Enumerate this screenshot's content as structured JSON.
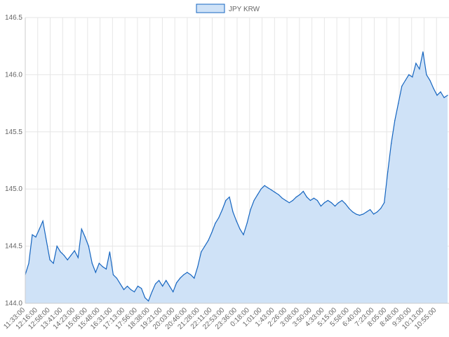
{
  "chart_data": {
    "type": "area",
    "title": "",
    "xlabel": "",
    "ylabel": "",
    "legend": {
      "placement": "top-center",
      "entries": [
        "JPY KRW"
      ]
    },
    "grid": true,
    "ylim": [
      144.0,
      146.5
    ],
    "y_ticks": [
      "144.0",
      "144.5",
      "145.0",
      "145.5",
      "146.0",
      "146.5"
    ],
    "x_ticks": [
      "11:33:00",
      "12:16:00",
      "12:58:00",
      "13:41:00",
      "14:23:00",
      "15:06:00",
      "15:48:00",
      "16:31:00",
      "17:13:00",
      "17:56:00",
      "18:38:00",
      "19:21:00",
      "20:03:00",
      "20:46:00",
      "21:28:00",
      "22:11:00",
      "22:53:00",
      "23:36:00",
      "0:18:00",
      "1:01:00",
      "1:43:00",
      "2:26:00",
      "3:08:00",
      "3:50:00",
      "4:33:00",
      "5:15:00",
      "5:58:00",
      "6:40:00",
      "7:23:00",
      "8:05:00",
      "8:48:00",
      "9:30:00",
      "10:13:00",
      "10:55:00"
    ],
    "series": [
      {
        "name": "JPY KRW",
        "color": "#1565c0",
        "fill": "#cfe2f7",
        "values": [
          144.25,
          144.35,
          144.6,
          144.58,
          144.65,
          144.72,
          144.55,
          144.38,
          144.35,
          144.5,
          144.45,
          144.42,
          144.38,
          144.42,
          144.46,
          144.4,
          144.65,
          144.58,
          144.5,
          144.35,
          144.27,
          144.35,
          144.32,
          144.3,
          144.45,
          144.25,
          144.22,
          144.17,
          144.12,
          144.15,
          144.12,
          144.1,
          144.15,
          144.13,
          144.05,
          144.02,
          144.1,
          144.17,
          144.2,
          144.15,
          144.2,
          144.15,
          144.1,
          144.18,
          144.22,
          144.25,
          144.27,
          144.25,
          144.22,
          144.32,
          144.45,
          144.5,
          144.55,
          144.62,
          144.7,
          144.75,
          144.82,
          144.9,
          144.93,
          144.8,
          144.72,
          144.65,
          144.6,
          144.7,
          144.82,
          144.9,
          144.95,
          145.0,
          145.03,
          145.01,
          144.99,
          144.97,
          144.95,
          144.92,
          144.9,
          144.88,
          144.9,
          144.93,
          144.95,
          144.98,
          144.93,
          144.9,
          144.92,
          144.9,
          144.85,
          144.88,
          144.9,
          144.88,
          144.85,
          144.88,
          144.9,
          144.87,
          144.83,
          144.8,
          144.78,
          144.77,
          144.78,
          144.8,
          144.82,
          144.78,
          144.8,
          144.83,
          144.88,
          145.15,
          145.4,
          145.6,
          145.75,
          145.9,
          145.95,
          146.0,
          145.98,
          146.1,
          146.05,
          146.2,
          146.0,
          145.95,
          145.88,
          145.82,
          145.85,
          145.8,
          145.82
        ]
      }
    ]
  }
}
